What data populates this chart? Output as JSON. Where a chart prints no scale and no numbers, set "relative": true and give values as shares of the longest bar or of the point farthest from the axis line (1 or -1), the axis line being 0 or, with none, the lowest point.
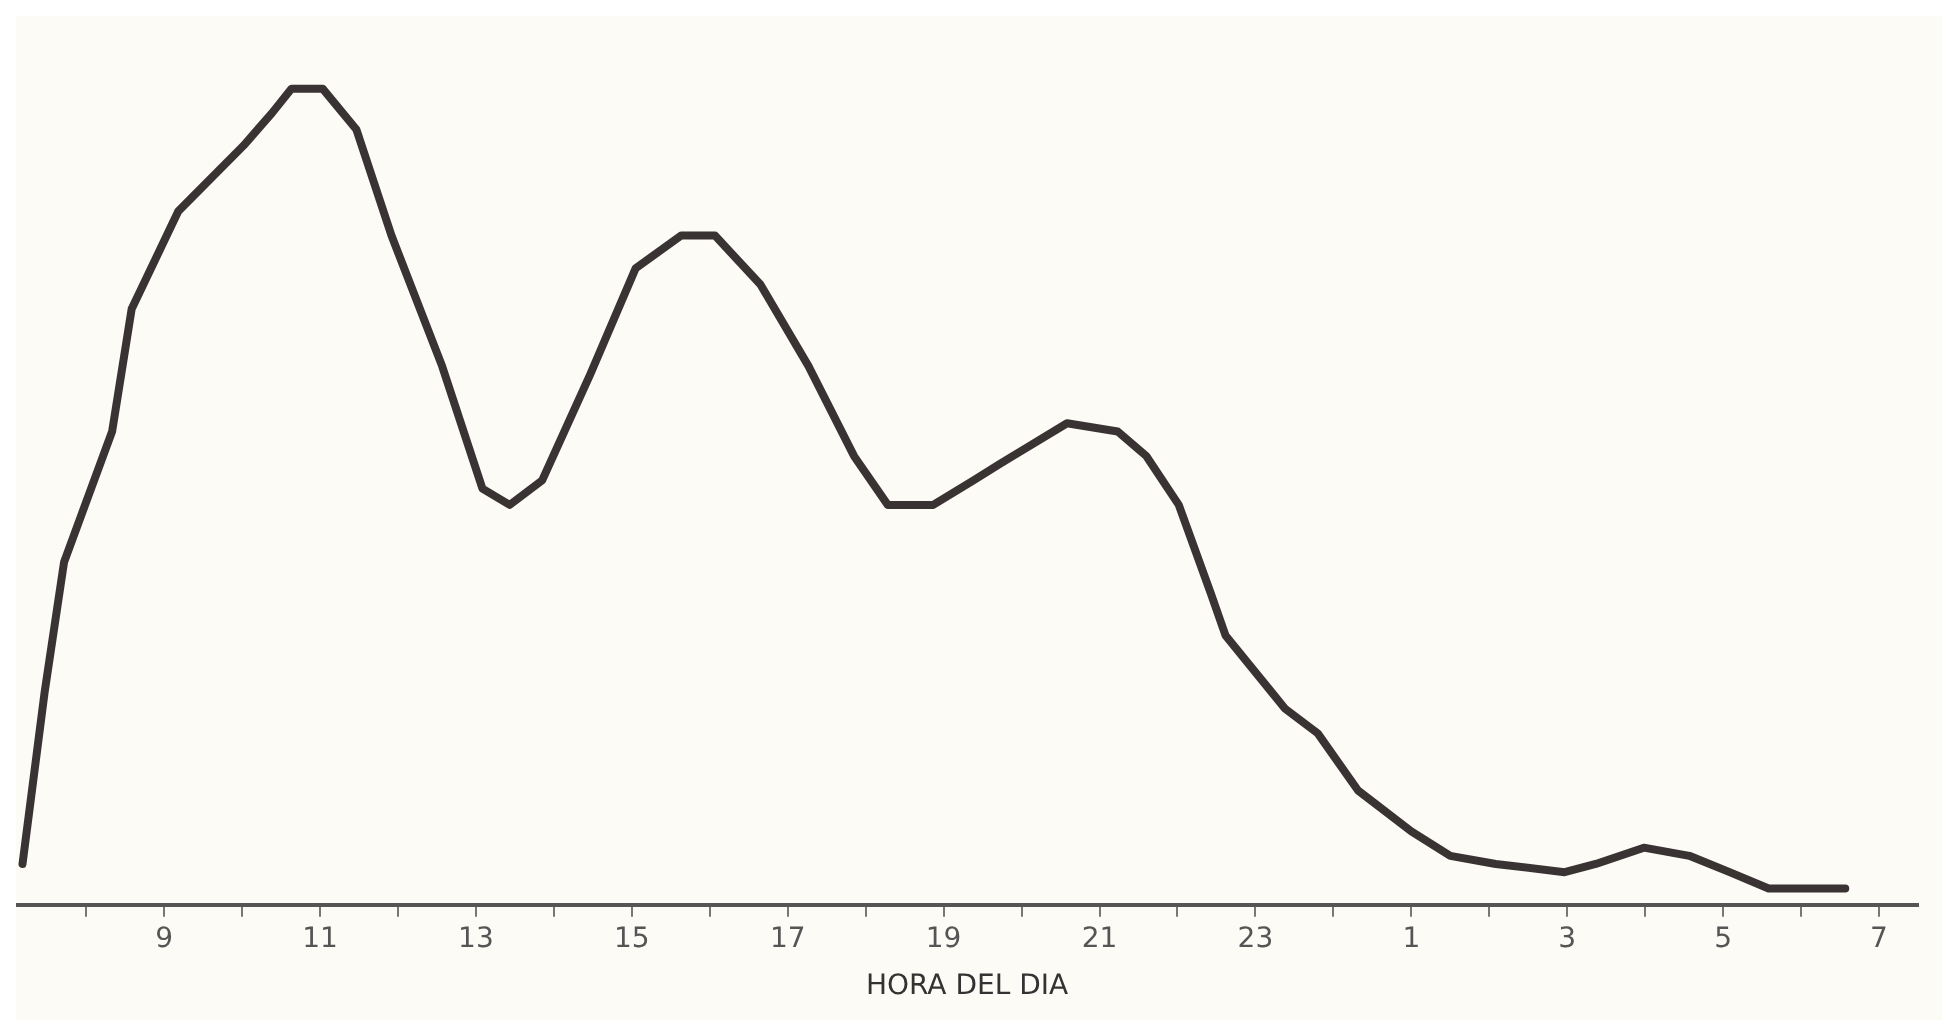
{
  "chart_data": {
    "type": "line",
    "relative": true,
    "xlabel": "HORA DEL DIA",
    "xlim": [
      "--01-01T07:06",
      "--01-02T07:30"
    ],
    "xticks": [
      {
        "value": "--01-01T08:00",
        "label": null
      },
      {
        "value": "--01-01T09:00",
        "label": "9"
      },
      {
        "value": "--01-01T10:00",
        "label": null
      },
      {
        "value": "--01-01T11:00",
        "label": "11"
      },
      {
        "value": "--01-01T12:00",
        "label": null
      },
      {
        "value": "--01-01T13:00",
        "label": "13"
      },
      {
        "value": "--01-01T14:00",
        "label": null
      },
      {
        "value": "--01-01T15:00",
        "label": "15"
      },
      {
        "value": "--01-01T16:00",
        "label": null
      },
      {
        "value": "--01-01T17:00",
        "label": "17"
      },
      {
        "value": "--01-01T18:00",
        "label": null
      },
      {
        "value": "--01-01T19:00",
        "label": "19"
      },
      {
        "value": "--01-01T20:00",
        "label": null
      },
      {
        "value": "--01-01T21:00",
        "label": "21"
      },
      {
        "value": "--01-01T22:00",
        "label": null
      },
      {
        "value": "--01-01T23:00",
        "label": "23"
      },
      {
        "value": "--01-02T00:00",
        "label": null
      },
      {
        "value": "--01-02T01:00",
        "label": "1"
      },
      {
        "value": "--01-02T02:00",
        "label": null
      },
      {
        "value": "--01-02T03:00",
        "label": "3"
      },
      {
        "value": "--01-02T04:00",
        "label": null
      },
      {
        "value": "--01-02T05:00",
        "label": "5"
      },
      {
        "value": "--01-02T06:00",
        "label": null
      },
      {
        "value": "--01-02T07:00",
        "label": "7"
      }
    ],
    "grid": false,
    "legend": false,
    "marker": "none",
    "line_style": "solid",
    "series": [
      {
        "color": "#3a3333",
        "x": [
          "--01-01T07:11",
          "--01-01T07:28",
          "--01-01T07:43",
          "--01-01T08:20",
          "--01-01T08:35",
          "--01-01T09:11",
          "--01-01T10:01",
          "--01-01T10:23",
          "--01-01T10:38",
          "--01-01T11:02",
          "--01-01T11:28",
          "--01-01T11:55",
          "--01-01T12:34",
          "--01-01T13:05",
          "--01-01T13:26",
          "--01-01T13:51",
          "--01-01T14:28",
          "--01-01T15:03",
          "--01-01T15:38",
          "--01-01T16:04",
          "--01-01T16:39",
          "--01-01T17:16",
          "--01-01T17:51",
          "--01-01T18:17",
          "--01-01T18:52",
          "--01-01T19:23",
          "--01-01T19:43",
          "--01-01T20:35",
          "--01-01T21:14",
          "--01-01T21:36",
          "--01-01T22:01",
          "--01-01T22:26",
          "--01-01T22:37",
          "--01-01T23:23",
          "--01-01T23:48",
          "--01-02T00:19",
          "--01-02T01:00",
          "--01-02T01:30",
          "--01-02T02:05",
          "--01-02T02:58",
          "--01-02T03:22",
          "--01-02T03:59",
          "--01-02T04:34",
          "--01-02T05:05",
          "--01-02T05:35",
          "--01-02T06:34"
        ],
        "values": [
          0.05,
          0.26,
          0.42,
          0.58,
          0.73,
          0.85,
          0.93,
          0.97,
          1.0,
          1.0,
          0.95,
          0.82,
          0.66,
          0.51,
          0.49,
          0.52,
          0.65,
          0.78,
          0.82,
          0.82,
          0.76,
          0.66,
          0.55,
          0.49,
          0.49,
          0.52,
          0.54,
          0.59,
          0.58,
          0.55,
          0.49,
          0.38,
          0.33,
          0.24,
          0.21,
          0.14,
          0.09,
          0.06,
          0.05,
          0.04,
          0.05,
          0.07,
          0.06,
          0.04,
          0.02,
          0.02
        ]
      }
    ]
  }
}
